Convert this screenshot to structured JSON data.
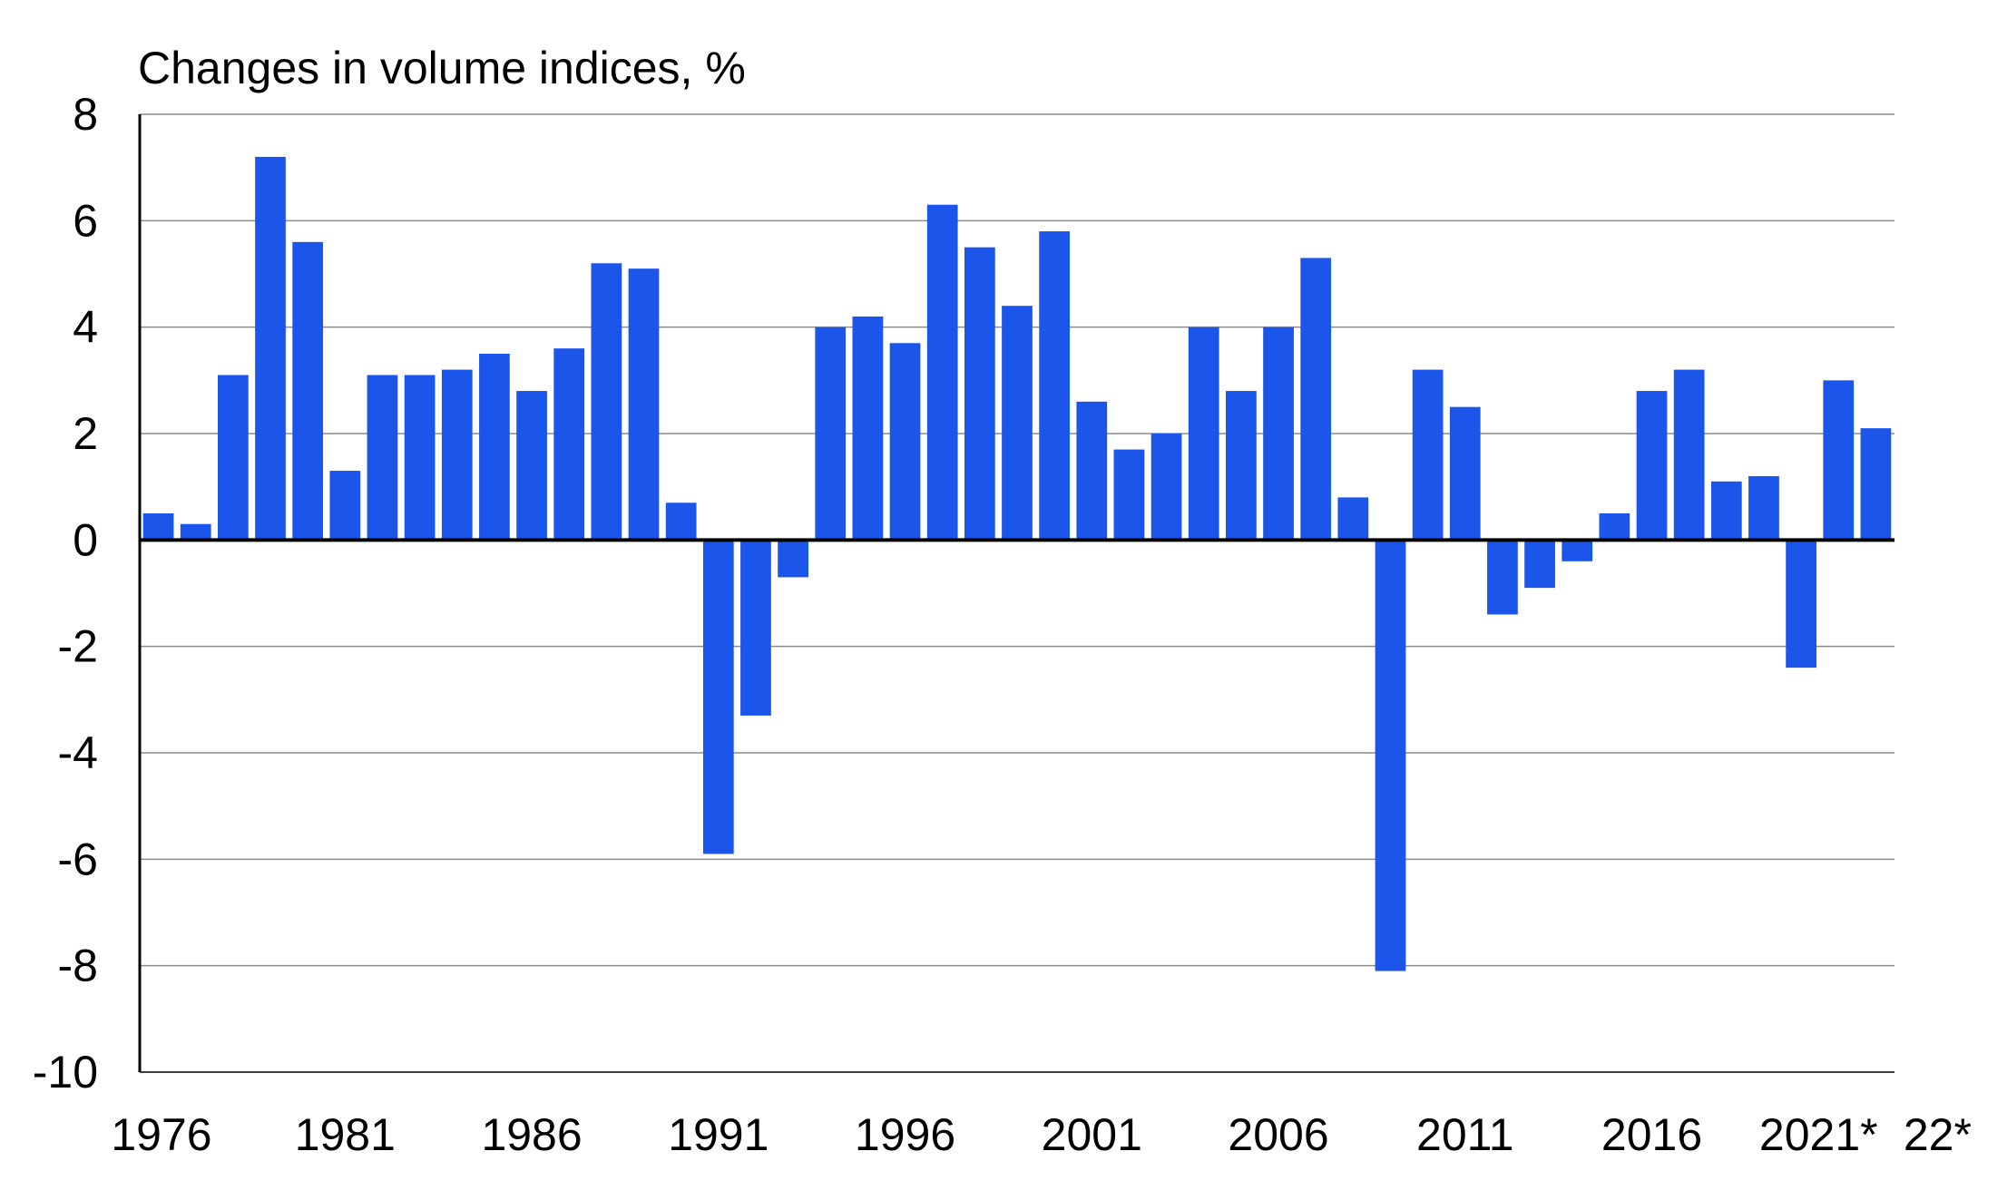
{
  "chart_data": {
    "type": "bar",
    "title": "Changes in volume indices, %",
    "xlabel": "",
    "ylabel": "",
    "ylim": [
      -10,
      8
    ],
    "yticks": [
      8,
      6,
      4,
      2,
      0,
      -2,
      -4,
      -6,
      -8,
      -10
    ],
    "grid": true,
    "bar_color": "#1c55ea",
    "x_tick_labels": [
      {
        "label": "1976",
        "category": "1976"
      },
      {
        "label": "1981",
        "category": "1981"
      },
      {
        "label": "1986",
        "category": "1986"
      },
      {
        "label": "1991",
        "category": "1991"
      },
      {
        "label": "1996",
        "category": "1996"
      },
      {
        "label": "2001",
        "category": "2001"
      },
      {
        "label": "2006",
        "category": "2006"
      },
      {
        "label": "2011",
        "category": "2011"
      },
      {
        "label": "2016",
        "category": "2016"
      },
      {
        "label": "2021*",
        "category": "2021*"
      },
      {
        "label": "22*",
        "category": "2022*"
      }
    ],
    "categories": [
      "1976",
      "1977",
      "1978",
      "1979",
      "1980",
      "1981",
      "1982",
      "1983",
      "1984",
      "1985",
      "1986",
      "1987",
      "1988",
      "1989",
      "1990",
      "1991",
      "1992",
      "1993",
      "1994",
      "1995",
      "1996",
      "1997",
      "1998",
      "1999",
      "2000",
      "2001",
      "2002",
      "2003",
      "2004",
      "2005",
      "2006",
      "2007",
      "2008",
      "2009",
      "2010",
      "2011",
      "2012",
      "2013",
      "2014",
      "2015",
      "2016",
      "2017",
      "2018",
      "2019",
      "2020",
      "2021*",
      "2022*"
    ],
    "values": [
      0.5,
      0.3,
      3.1,
      7.2,
      5.6,
      1.3,
      3.1,
      3.1,
      3.2,
      3.5,
      2.8,
      3.6,
      5.2,
      5.1,
      0.7,
      -5.9,
      -3.3,
      -0.7,
      4.0,
      4.2,
      3.7,
      6.3,
      5.5,
      4.4,
      5.8,
      2.6,
      1.7,
      2.0,
      4.0,
      2.8,
      4.0,
      5.3,
      0.8,
      -8.1,
      3.2,
      2.5,
      -1.4,
      -0.9,
      -0.4,
      0.5,
      2.8,
      3.2,
      1.1,
      1.2,
      -2.4,
      3.0,
      2.1
    ]
  }
}
